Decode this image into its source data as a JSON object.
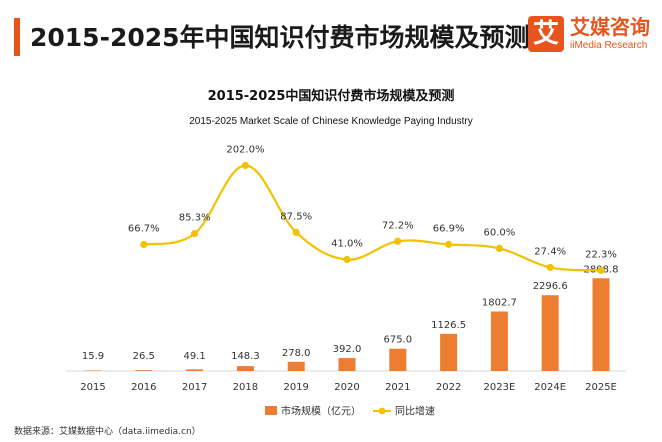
{
  "header": {
    "title": "2015-2025年中国知识付费市场规模及预测",
    "accent_color": "#e8541e"
  },
  "logo": {
    "icon_char": "艾",
    "name_cn": "艾媒咨询",
    "name_en": "iiMedia Research"
  },
  "footer": {
    "source": "数据来源：艾媒数据中心（data.iimedia.cn）"
  },
  "chart_data": {
    "type": "bar",
    "title": "2015-2025中国知识付费市场规模及预测",
    "subtitle": "2015-2025 Market Scale of Chinese Knowledge Paying Industry",
    "categories": [
      "2015",
      "2016",
      "2017",
      "2018",
      "2019",
      "2020",
      "2021",
      "2022",
      "2023E",
      "2024E",
      "2025E"
    ],
    "series": [
      {
        "name": "市场规模（亿元）",
        "kind": "bar",
        "color": "#ed7d31",
        "values": [
          15.9,
          26.5,
          49.1,
          148.3,
          278.0,
          392.0,
          675.0,
          1126.5,
          1802.7,
          2296.6,
          2808.8
        ],
        "labels": [
          "15.9",
          "26.5",
          "49.1",
          "148.3",
          "278.0",
          "392.0",
          "675.0",
          "1126.5",
          "1802.7",
          "2296.6",
          "2808.8"
        ]
      },
      {
        "name": "同比增速",
        "kind": "line",
        "color": "#f2c200",
        "values": [
          null,
          66.7,
          85.3,
          202.0,
          87.5,
          41.0,
          72.2,
          66.9,
          60.0,
          27.4,
          22.3
        ],
        "labels": [
          null,
          "66.7%",
          "85.3%",
          "202.0%",
          "87.5%",
          "41.0%",
          "72.2%",
          "66.9%",
          "60.0%",
          "27.4%",
          "22.3%"
        ]
      }
    ],
    "bar_axis_max": 3000,
    "line_axis_range": [
      -150,
      220
    ],
    "legend_position": "bottom",
    "grid": false
  }
}
